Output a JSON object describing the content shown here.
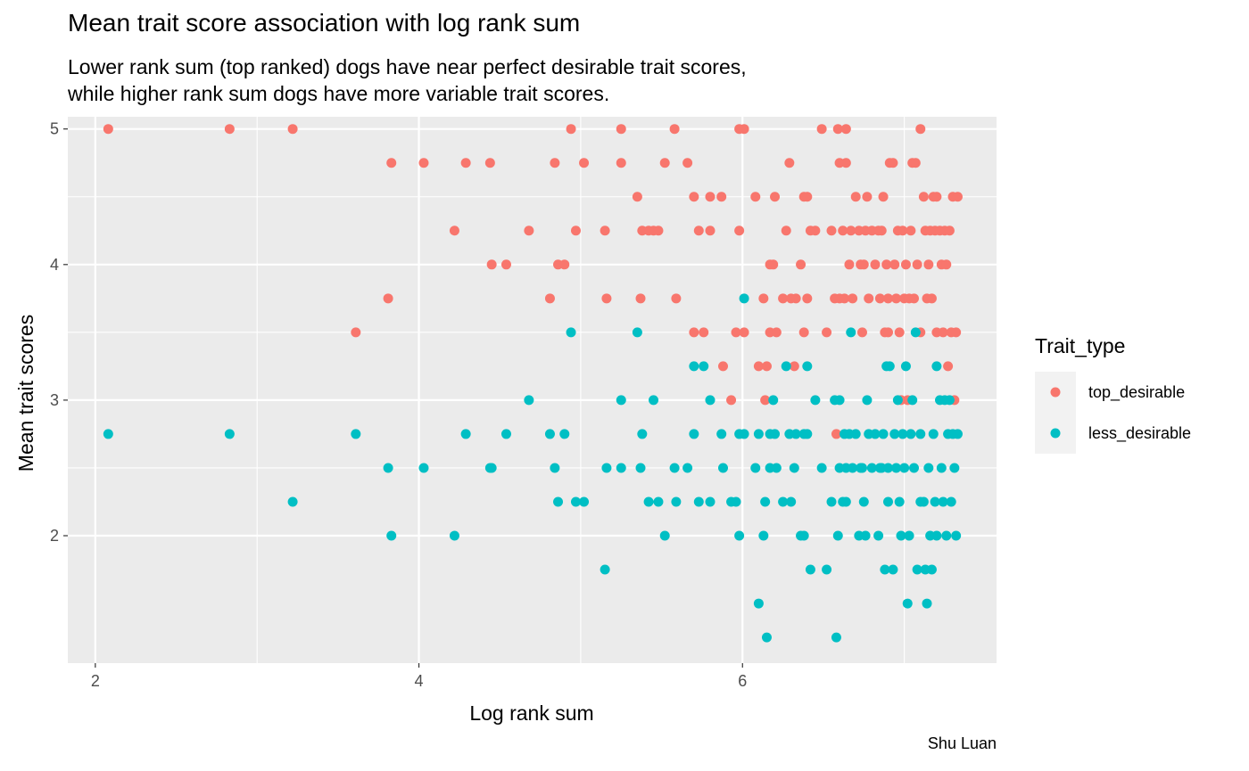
{
  "chart_data": {
    "type": "scatter",
    "title": "Mean trait score association with log rank sum",
    "subtitle": [
      "Lower rank sum (top ranked) dogs have near perfect desirable trait scores,",
      "while higher rank sum dogs have more variable trait scores."
    ],
    "xlabel": "Log rank sum",
    "ylabel": "Mean trait scores",
    "caption": "Shu Luan",
    "xlim": [
      1.83,
      7.57
    ],
    "ylim": [
      1.06,
      5.09
    ],
    "x_ticks": [
      2,
      4,
      6
    ],
    "y_ticks": [
      2,
      3,
      4,
      5
    ],
    "x_minor": [
      3,
      5,
      7
    ],
    "y_minor": [
      2.5,
      3.5,
      4.5
    ],
    "grid": true,
    "background": "#EBEBEB",
    "legend": {
      "title": "Trait_type",
      "position": "right"
    },
    "series": [
      {
        "name": "top_desirable",
        "color": "#F8766D",
        "points": [
          [
            2.08,
            5
          ],
          [
            2.83,
            5
          ],
          [
            3.22,
            5
          ],
          [
            3.61,
            3.5
          ],
          [
            3.81,
            3.75
          ],
          [
            3.83,
            4.75
          ],
          [
            4.03,
            4.75
          ],
          [
            4.22,
            4.25
          ],
          [
            4.29,
            4.75
          ],
          [
            4.44,
            4.75
          ],
          [
            4.45,
            4
          ],
          [
            4.54,
            4
          ],
          [
            4.68,
            4.25
          ],
          [
            4.81,
            3.75
          ],
          [
            4.84,
            4.75
          ],
          [
            4.86,
            4
          ],
          [
            4.9,
            4
          ],
          [
            4.94,
            5
          ],
          [
            4.97,
            4.25
          ],
          [
            5.02,
            4.75
          ],
          [
            5.15,
            4.25
          ],
          [
            5.16,
            3.75
          ],
          [
            5.25,
            5
          ],
          [
            5.25,
            4.75
          ],
          [
            5.35,
            4.5
          ],
          [
            5.37,
            3.75
          ],
          [
            5.38,
            4.25
          ],
          [
            5.42,
            4.25
          ],
          [
            5.45,
            4.25
          ],
          [
            5.48,
            4.25
          ],
          [
            5.52,
            4.75
          ],
          [
            5.58,
            5
          ],
          [
            5.59,
            3.75
          ],
          [
            5.66,
            4.75
          ],
          [
            5.7,
            4.5
          ],
          [
            5.7,
            3.5
          ],
          [
            5.73,
            4.25
          ],
          [
            5.76,
            3.5
          ],
          [
            5.8,
            4.5
          ],
          [
            5.8,
            4.25
          ],
          [
            5.87,
            4.5
          ],
          [
            5.88,
            3.25
          ],
          [
            5.93,
            3
          ],
          [
            5.96,
            3.5
          ],
          [
            5.98,
            4.25
          ],
          [
            5.98,
            5
          ],
          [
            6.01,
            5
          ],
          [
            6.01,
            3.5
          ],
          [
            6.08,
            4.5
          ],
          [
            6.1,
            3.25
          ],
          [
            6.13,
            3.75
          ],
          [
            6.14,
            3
          ],
          [
            6.15,
            3.25
          ],
          [
            6.17,
            4
          ],
          [
            6.17,
            3.5
          ],
          [
            6.19,
            4
          ],
          [
            6.2,
            4.5
          ],
          [
            6.21,
            3.5
          ],
          [
            6.25,
            3.75
          ],
          [
            6.27,
            4.25
          ],
          [
            6.29,
            4.75
          ],
          [
            6.3,
            3.75
          ],
          [
            6.32,
            3.25
          ],
          [
            6.33,
            3.75
          ],
          [
            6.36,
            4
          ],
          [
            6.38,
            4.5
          ],
          [
            6.38,
            3.5
          ],
          [
            6.4,
            4.5
          ],
          [
            6.4,
            3.75
          ],
          [
            6.42,
            4.25
          ],
          [
            6.45,
            4.25
          ],
          [
            6.49,
            5
          ],
          [
            6.52,
            3.5
          ],
          [
            6.55,
            4.25
          ],
          [
            6.57,
            3.75
          ],
          [
            6.58,
            2.75
          ],
          [
            6.59,
            5
          ],
          [
            6.6,
            3.75
          ],
          [
            6.6,
            4.75
          ],
          [
            6.62,
            4.25
          ],
          [
            6.63,
            3.75
          ],
          [
            6.64,
            5
          ],
          [
            6.64,
            4.75
          ],
          [
            6.66,
            4
          ],
          [
            6.67,
            4.25
          ],
          [
            6.68,
            3.75
          ],
          [
            6.7,
            4.5
          ],
          [
            6.72,
            4.25
          ],
          [
            6.73,
            4
          ],
          [
            6.74,
            3.5
          ],
          [
            6.75,
            4
          ],
          [
            6.76,
            4.25
          ],
          [
            6.77,
            4.5
          ],
          [
            6.78,
            3.75
          ],
          [
            6.8,
            4.25
          ],
          [
            6.82,
            4
          ],
          [
            6.84,
            4.25
          ],
          [
            6.85,
            3.75
          ],
          [
            6.86,
            4.25
          ],
          [
            6.87,
            4.5
          ],
          [
            6.88,
            3.5
          ],
          [
            6.89,
            4
          ],
          [
            6.9,
            3.75
          ],
          [
            6.9,
            3.5
          ],
          [
            6.91,
            4.75
          ],
          [
            6.93,
            4.75
          ],
          [
            6.94,
            4
          ],
          [
            6.95,
            3.75
          ],
          [
            6.96,
            4.25
          ],
          [
            6.97,
            3.5
          ],
          [
            6.98,
            3
          ],
          [
            6.99,
            4.25
          ],
          [
            7.0,
            3.75
          ],
          [
            7.01,
            4
          ],
          [
            7.02,
            3
          ],
          [
            7.03,
            3.75
          ],
          [
            7.04,
            4.25
          ],
          [
            7.05,
            4.75
          ],
          [
            7.06,
            3.75
          ],
          [
            7.07,
            4.75
          ],
          [
            7.08,
            4
          ],
          [
            7.1,
            5
          ],
          [
            7.1,
            3.5
          ],
          [
            7.12,
            4.5
          ],
          [
            7.13,
            4.25
          ],
          [
            7.14,
            3.75
          ],
          [
            7.15,
            4
          ],
          [
            7.16,
            4.25
          ],
          [
            7.17,
            3.75
          ],
          [
            7.18,
            4.5
          ],
          [
            7.19,
            4.25
          ],
          [
            7.2,
            4.5
          ],
          [
            7.2,
            3.5
          ],
          [
            7.22,
            4.25
          ],
          [
            7.23,
            4
          ],
          [
            7.24,
            3.5
          ],
          [
            7.25,
            4.25
          ],
          [
            7.26,
            4
          ],
          [
            7.27,
            3.25
          ],
          [
            7.28,
            4.25
          ],
          [
            7.29,
            3.5
          ],
          [
            7.3,
            4.5
          ],
          [
            7.31,
            3
          ],
          [
            7.32,
            3.5
          ],
          [
            7.33,
            4.5
          ]
        ]
      },
      {
        "name": "less_desirable",
        "color": "#00BFC4",
        "points": [
          [
            2.08,
            2.75
          ],
          [
            2.83,
            2.75
          ],
          [
            3.22,
            2.25
          ],
          [
            3.61,
            2.75
          ],
          [
            3.81,
            2.5
          ],
          [
            3.83,
            2
          ],
          [
            4.03,
            2.5
          ],
          [
            4.22,
            2
          ],
          [
            4.29,
            2.75
          ],
          [
            4.44,
            2.5
          ],
          [
            4.45,
            2.5
          ],
          [
            4.54,
            2.75
          ],
          [
            4.68,
            3
          ],
          [
            4.81,
            2.75
          ],
          [
            4.84,
            2.5
          ],
          [
            4.86,
            2.25
          ],
          [
            4.9,
            2.75
          ],
          [
            4.94,
            3.5
          ],
          [
            4.97,
            2.25
          ],
          [
            5.02,
            2.25
          ],
          [
            5.15,
            1.75
          ],
          [
            5.16,
            2.5
          ],
          [
            5.25,
            3
          ],
          [
            5.25,
            2.5
          ],
          [
            5.35,
            3.5
          ],
          [
            5.37,
            2.5
          ],
          [
            5.38,
            2.75
          ],
          [
            5.42,
            2.25
          ],
          [
            5.45,
            3
          ],
          [
            5.48,
            2.25
          ],
          [
            5.52,
            2
          ],
          [
            5.58,
            2.5
          ],
          [
            5.59,
            2.25
          ],
          [
            5.66,
            2.5
          ],
          [
            5.7,
            2.75
          ],
          [
            5.7,
            3.25
          ],
          [
            5.73,
            2.25
          ],
          [
            5.76,
            3.25
          ],
          [
            5.8,
            3
          ],
          [
            5.8,
            2.25
          ],
          [
            5.87,
            2.75
          ],
          [
            5.88,
            2.5
          ],
          [
            5.93,
            2.25
          ],
          [
            5.96,
            2.25
          ],
          [
            5.98,
            2
          ],
          [
            5.98,
            2.75
          ],
          [
            6.01,
            3.75
          ],
          [
            6.01,
            2.75
          ],
          [
            6.08,
            2.5
          ],
          [
            6.1,
            1.5
          ],
          [
            6.1,
            2.75
          ],
          [
            6.13,
            2
          ],
          [
            6.14,
            2.25
          ],
          [
            6.15,
            1.25
          ],
          [
            6.17,
            2.75
          ],
          [
            6.17,
            2.5
          ],
          [
            6.19,
            3
          ],
          [
            6.2,
            2.75
          ],
          [
            6.21,
            2.5
          ],
          [
            6.25,
            2.25
          ],
          [
            6.27,
            3.25
          ],
          [
            6.29,
            2.75
          ],
          [
            6.3,
            2.25
          ],
          [
            6.32,
            2.5
          ],
          [
            6.33,
            2.75
          ],
          [
            6.36,
            2
          ],
          [
            6.38,
            2.75
          ],
          [
            6.38,
            2
          ],
          [
            6.4,
            2.75
          ],
          [
            6.4,
            3.25
          ],
          [
            6.42,
            1.75
          ],
          [
            6.45,
            3
          ],
          [
            6.49,
            2.5
          ],
          [
            6.52,
            1.75
          ],
          [
            6.55,
            2.25
          ],
          [
            6.57,
            3
          ],
          [
            6.58,
            1.25
          ],
          [
            6.59,
            2
          ],
          [
            6.6,
            2.5
          ],
          [
            6.6,
            3
          ],
          [
            6.62,
            2.25
          ],
          [
            6.63,
            2.75
          ],
          [
            6.64,
            2.5
          ],
          [
            6.64,
            2.25
          ],
          [
            6.66,
            2.75
          ],
          [
            6.67,
            3.5
          ],
          [
            6.68,
            2.5
          ],
          [
            6.7,
            2.75
          ],
          [
            6.72,
            2
          ],
          [
            6.73,
            2.5
          ],
          [
            6.74,
            2.5
          ],
          [
            6.75,
            2.25
          ],
          [
            6.76,
            2
          ],
          [
            6.77,
            3
          ],
          [
            6.78,
            2.75
          ],
          [
            6.8,
            2.5
          ],
          [
            6.82,
            2.75
          ],
          [
            6.84,
            2
          ],
          [
            6.85,
            2.5
          ],
          [
            6.86,
            2.5
          ],
          [
            6.87,
            2.75
          ],
          [
            6.88,
            1.75
          ],
          [
            6.89,
            3.25
          ],
          [
            6.9,
            2.5
          ],
          [
            6.9,
            2.25
          ],
          [
            6.91,
            3.25
          ],
          [
            6.93,
            1.75
          ],
          [
            6.94,
            2.75
          ],
          [
            6.95,
            2.5
          ],
          [
            6.96,
            3
          ],
          [
            6.97,
            2.25
          ],
          [
            6.98,
            2
          ],
          [
            6.99,
            2.75
          ],
          [
            7.0,
            2.5
          ],
          [
            7.01,
            3.25
          ],
          [
            7.02,
            1.5
          ],
          [
            7.03,
            2
          ],
          [
            7.04,
            2.75
          ],
          [
            7.05,
            3
          ],
          [
            7.06,
            2.5
          ],
          [
            7.07,
            3.5
          ],
          [
            7.08,
            1.75
          ],
          [
            7.1,
            2.75
          ],
          [
            7.1,
            2.25
          ],
          [
            7.12,
            2.25
          ],
          [
            7.13,
            1.75
          ],
          [
            7.14,
            1.5
          ],
          [
            7.15,
            2.5
          ],
          [
            7.16,
            2
          ],
          [
            7.17,
            1.75
          ],
          [
            7.18,
            2.75
          ],
          [
            7.19,
            2.25
          ],
          [
            7.2,
            3.25
          ],
          [
            7.2,
            2
          ],
          [
            7.22,
            3
          ],
          [
            7.23,
            2.5
          ],
          [
            7.24,
            2.25
          ],
          [
            7.25,
            3
          ],
          [
            7.26,
            2
          ],
          [
            7.27,
            2.75
          ],
          [
            7.28,
            3
          ],
          [
            7.29,
            2.25
          ],
          [
            7.3,
            2.75
          ],
          [
            7.31,
            2.5
          ],
          [
            7.32,
            2
          ],
          [
            7.33,
            2.75
          ]
        ]
      }
    ]
  }
}
